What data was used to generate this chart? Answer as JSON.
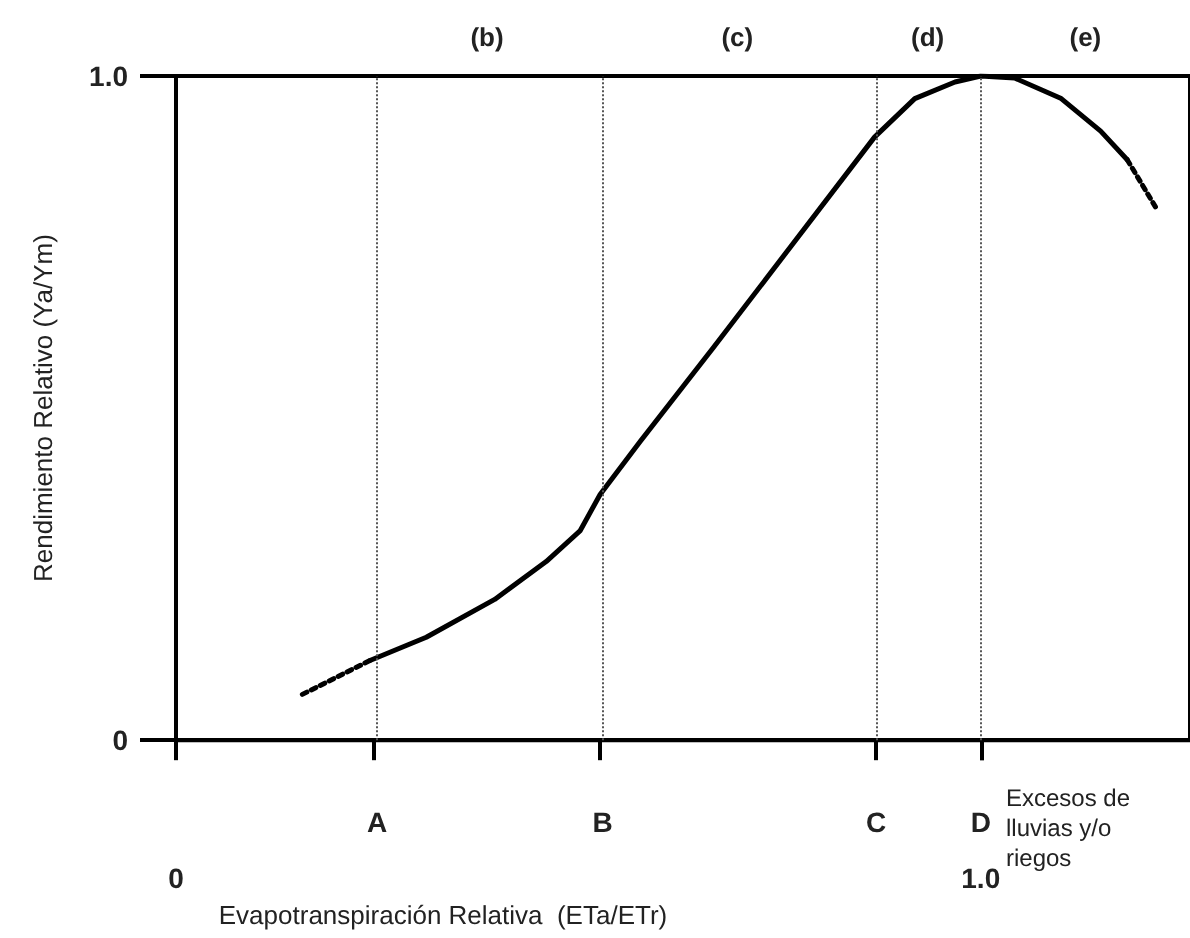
{
  "chart_data": {
    "type": "line",
    "xlabel": "Evapotranspiración Relativa  (ETa/ETr)",
    "ylabel": "Rendimiento Relativo (Ya/Ym)",
    "xlim": [
      0,
      1.26
    ],
    "ylim": [
      0,
      1
    ],
    "xticks": [
      0,
      {
        "value": 1,
        "label": "1.0"
      }
    ],
    "yticks": [
      0,
      {
        "value": 1,
        "label": "1.0"
      }
    ],
    "series": [
      {
        "color": "#000000",
        "line_style": "dotted",
        "x": [
          0.157,
          0.241
        ],
        "values": [
          0.069,
          0.12
        ]
      },
      {
        "color": "#000000",
        "line_style": "solid",
        "x": [
          0.241,
          0.311,
          0.396,
          0.46,
          0.502,
          0.527,
          0.577,
          0.669,
          0.868,
          0.918,
          0.968,
          1.0,
          1.042,
          1.1,
          1.149,
          1.182
        ],
        "values": [
          0.12,
          0.155,
          0.212,
          0.269,
          0.315,
          0.37,
          0.45,
          0.593,
          0.908,
          0.966,
          0.991,
          1.0,
          0.997,
          0.966,
          0.917,
          0.874
        ]
      },
      {
        "color": "#000000",
        "line_style": "dotted",
        "x": [
          1.182,
          1.219
        ],
        "values": [
          0.874,
          0.799
        ]
      }
    ],
    "ref_lines": [
      {
        "axis": "x",
        "value": 0.246,
        "label": "A",
        "line_style": "dotted",
        "color": "#555555"
      },
      {
        "axis": "x",
        "value": 0.527,
        "label": "B",
        "line_style": "dotted",
        "color": "#555555"
      },
      {
        "axis": "x",
        "value": 0.868,
        "label": "C",
        "line_style": "dotted",
        "color": "#555555"
      },
      {
        "axis": "x",
        "value": 1.0,
        "label": "D",
        "line_style": "dotted",
        "color": "#555555"
      }
    ],
    "annotations": [
      "(b)",
      "(c)",
      "(d)",
      "(e)",
      "Excesos de lluvias y/o riegos"
    ],
    "grid": false,
    "marker": "none"
  }
}
